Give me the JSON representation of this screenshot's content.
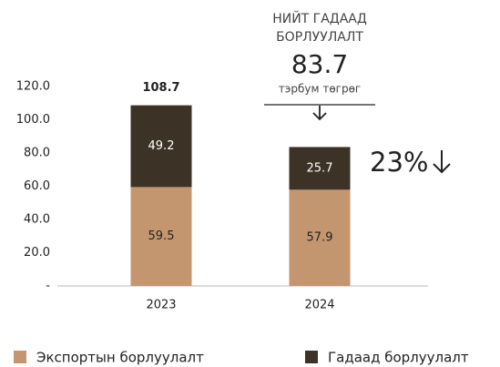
{
  "chart_data": {
    "type": "stacked_bar",
    "categories": [
      "2023",
      "2024"
    ],
    "series": [
      {
        "name": "Экспортын борлуулалт",
        "color": "#c4966f",
        "values": [
          59.5,
          57.9
        ]
      },
      {
        "name": "Гадаад борлуулалт",
        "color": "#3d3226",
        "values": [
          49.2,
          25.7
        ]
      }
    ],
    "ylim": [
      0,
      120
    ],
    "yticks": [
      {
        "value": 0,
        "label": "-"
      },
      {
        "value": 20,
        "label": "20.0"
      },
      {
        "value": 40,
        "label": "40.0"
      },
      {
        "value": 60,
        "label": "60.0"
      },
      {
        "value": 80,
        "label": "80.0"
      },
      {
        "value": 100,
        "label": "100.0"
      },
      {
        "value": 120,
        "label": "120.0"
      }
    ],
    "total_labels": [
      "108.7",
      null
    ],
    "annotations": {
      "heading_line1": "НИЙТ ГАДААД",
      "heading_line2": "БОРЛУУЛАЛТ",
      "total": "83.7",
      "unit": "тэрбум төгрөг",
      "change": "23%"
    }
  }
}
